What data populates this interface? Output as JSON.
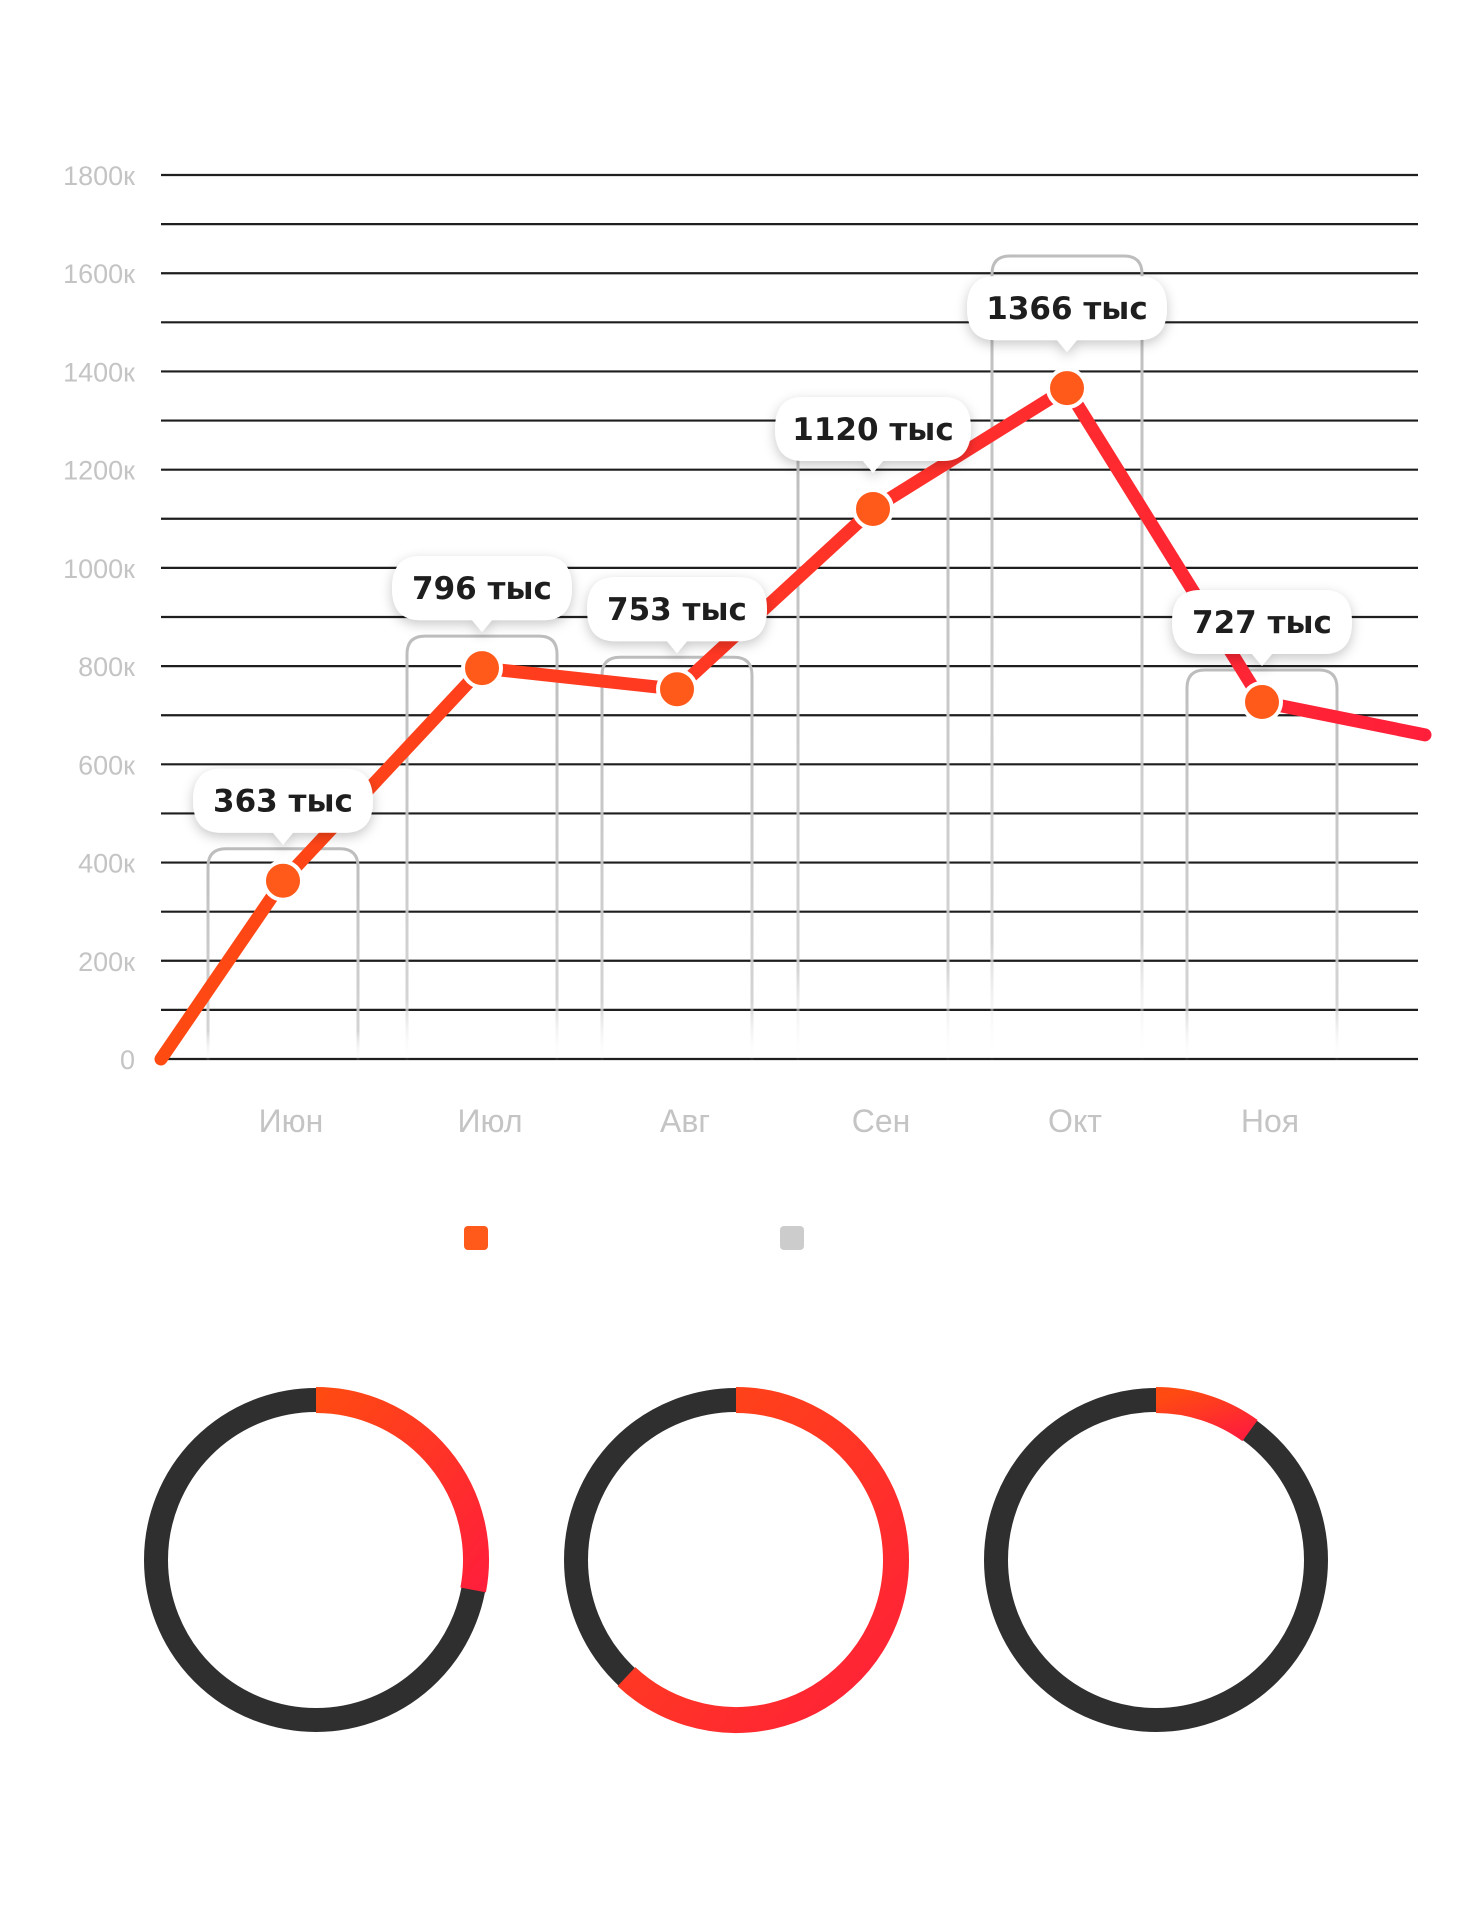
{
  "chart_data": [
    {
      "type": "line",
      "categories": [
        "Июн",
        "Июл",
        "Авг",
        "Сен",
        "Окт",
        "Ноя"
      ],
      "y_tick_labels": [
        "0",
        "200к",
        "400к",
        "600к",
        "800к",
        "1000к",
        "1200к",
        "1400к",
        "1600к",
        "1800к"
      ],
      "ylim": [
        0,
        1800
      ],
      "y_tick_values": [
        0,
        200,
        400,
        600,
        800,
        1000,
        1200,
        1400,
        1600,
        1800
      ],
      "grid": true,
      "series": [
        {
          "values": [
            363,
            796,
            753,
            1120,
            1366,
            727
          ]
        }
      ],
      "data_labels": [
        "363 тыс",
        "796 тыс",
        "753 тыс",
        "1120 тыс",
        "1366 тыс",
        "727 тыс"
      ],
      "line_start_value": 0,
      "line_end_value": 660,
      "legend_placement": "bottom",
      "legend_swatches": [
        "#ff5a1a",
        "#cccccc"
      ],
      "colors": {
        "line_start": "#ff4a12",
        "line_end": "#ff1f3a",
        "marker": "#ff5a1a",
        "grid": "#1e1e1e"
      }
    },
    {
      "type": "pie",
      "variant": "donut",
      "values": [
        0.28,
        0.72
      ],
      "colors": [
        "#ff4a12",
        "#2f2f2f"
      ]
    },
    {
      "type": "pie",
      "variant": "donut",
      "values": [
        0.62,
        0.38
      ],
      "colors": [
        "#ff2a30",
        "#2f2f2f"
      ]
    },
    {
      "type": "pie",
      "variant": "donut",
      "values": [
        0.1,
        0.9
      ],
      "colors": [
        "#ff4a12",
        "#2f2f2f"
      ]
    }
  ]
}
